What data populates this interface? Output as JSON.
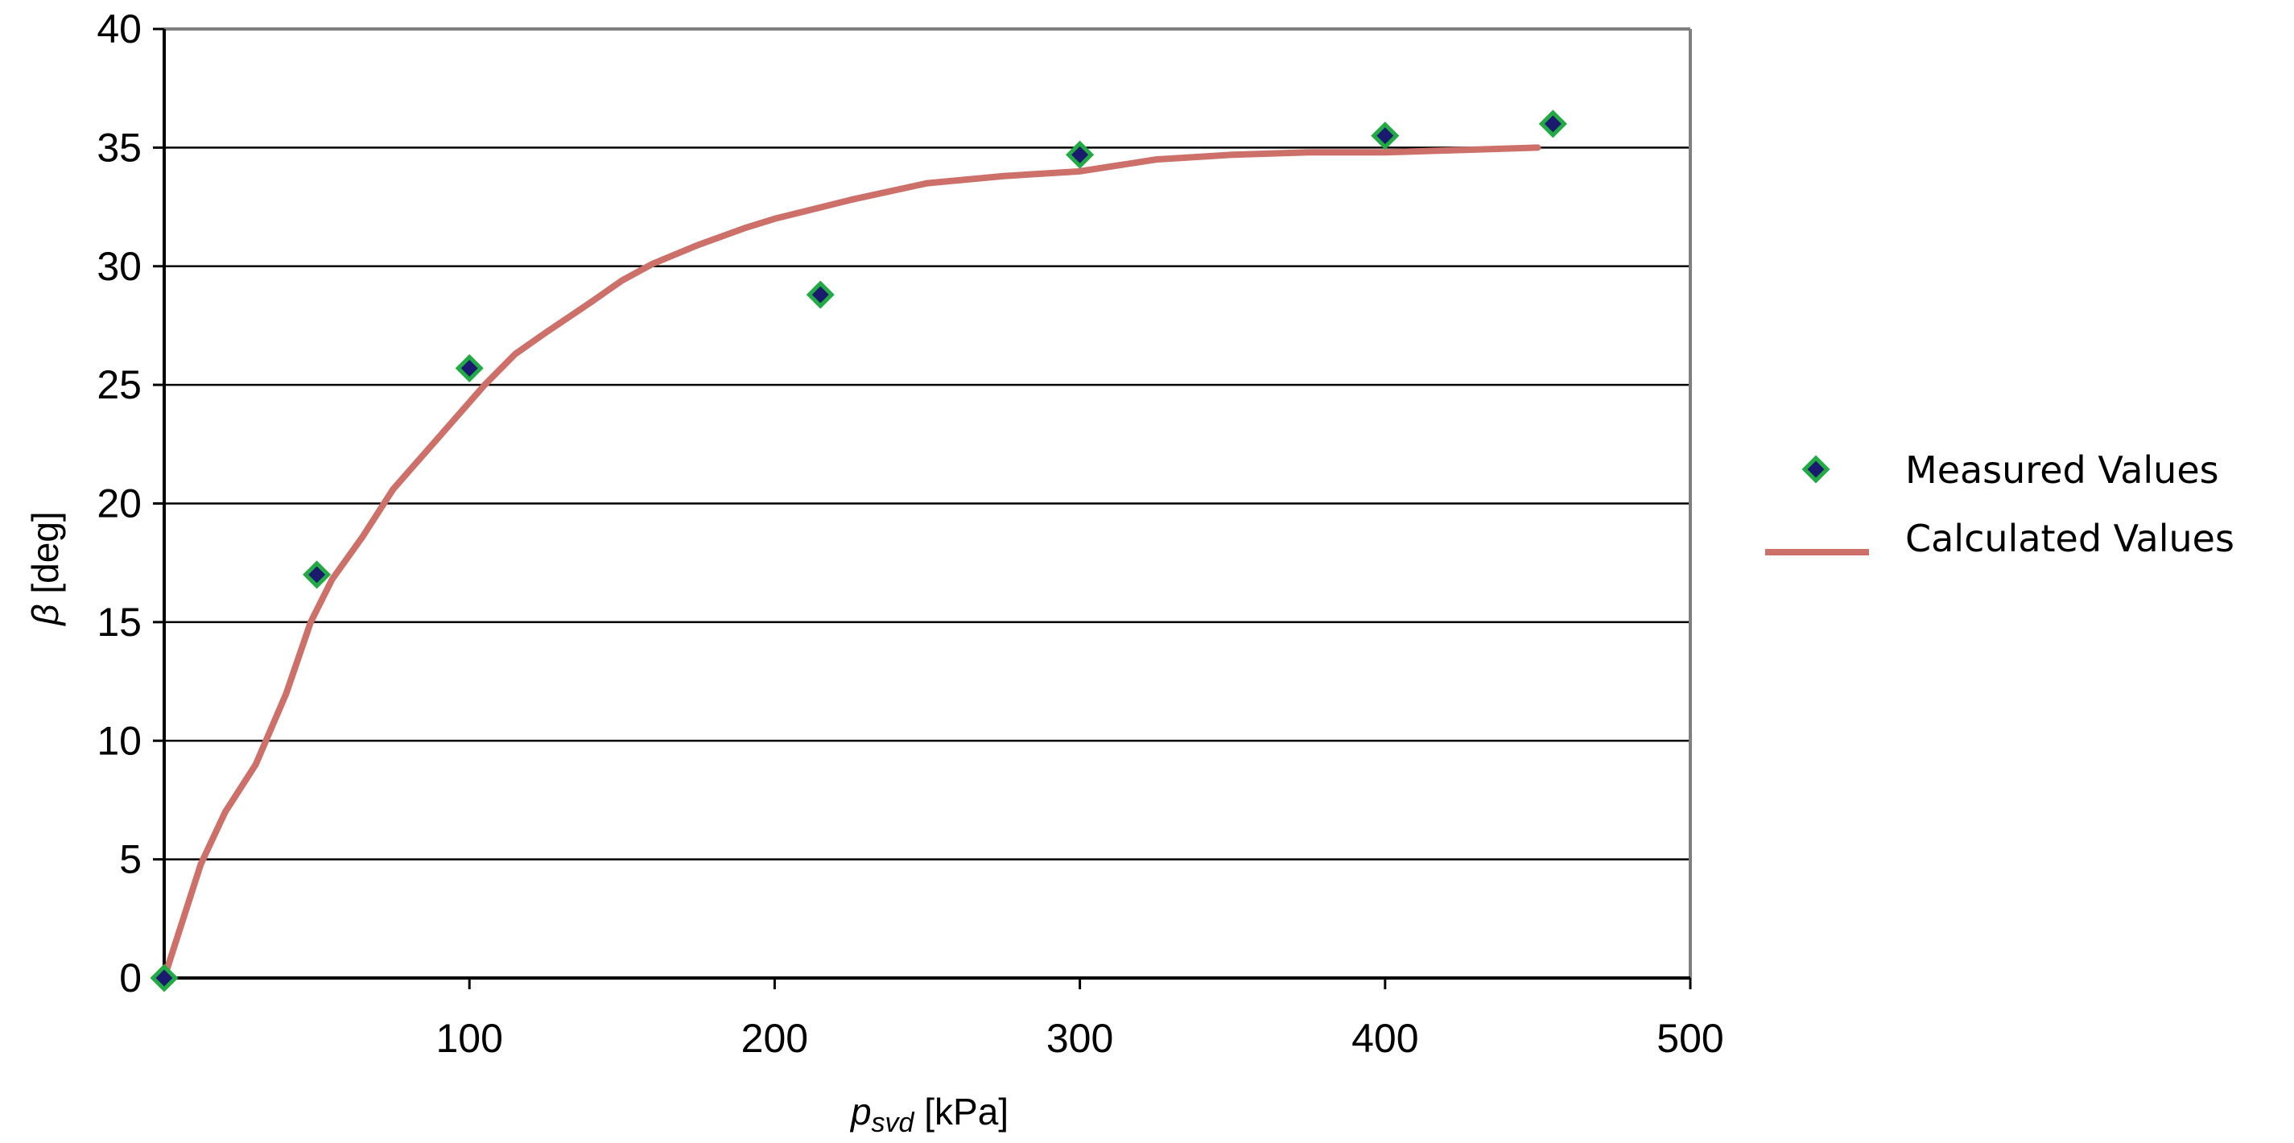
{
  "chart_data": {
    "type": "line",
    "title": "",
    "xlabel": {
      "main": "p",
      "subscript": "svd",
      "unit": " [kPa]"
    },
    "ylabel": {
      "symbol": "β",
      "unit": " [deg]"
    },
    "xlim": [
      0,
      500
    ],
    "ylim": [
      0,
      40
    ],
    "x_ticks": [
      100,
      200,
      300,
      400,
      500
    ],
    "x_tick_labels": [
      "100",
      "200",
      "300",
      "400",
      "500"
    ],
    "y_ticks": [
      0,
      5,
      10,
      15,
      20,
      25,
      30,
      35,
      40
    ],
    "y_tick_labels": [
      "0",
      "5",
      "10",
      "15",
      "20",
      "25",
      "30",
      "35",
      "40"
    ],
    "grid": "horizontal",
    "legend_position": "right",
    "series": [
      {
        "name": "Measured Values",
        "kind": "scatter",
        "marker": "diamond",
        "marker_fill": "#1a1a6e",
        "marker_edge": "#22aa44",
        "x": [
          0,
          50,
          100,
          215,
          300,
          400,
          455
        ],
        "y": [
          0,
          17.0,
          25.7,
          28.8,
          34.7,
          35.5,
          36.0
        ]
      },
      {
        "name": "Calculated Values",
        "kind": "line",
        "color": "#cd706a",
        "x": [
          0,
          5,
          12,
          20,
          30,
          40,
          48,
          55,
          65,
          75,
          90,
          105,
          115,
          125,
          140,
          150,
          160,
          175,
          190,
          200,
          225,
          250,
          275,
          300,
          325,
          350,
          375,
          400,
          425,
          450
        ],
        "y": [
          0,
          2.0,
          4.8,
          7.0,
          9.0,
          12.0,
          15.0,
          16.8,
          18.6,
          20.6,
          22.8,
          25.0,
          26.3,
          27.2,
          28.5,
          29.4,
          30.1,
          30.9,
          31.6,
          32.0,
          32.8,
          33.5,
          33.8,
          34.0,
          34.5,
          34.7,
          34.8,
          34.8,
          34.9,
          35.0
        ]
      }
    ]
  }
}
